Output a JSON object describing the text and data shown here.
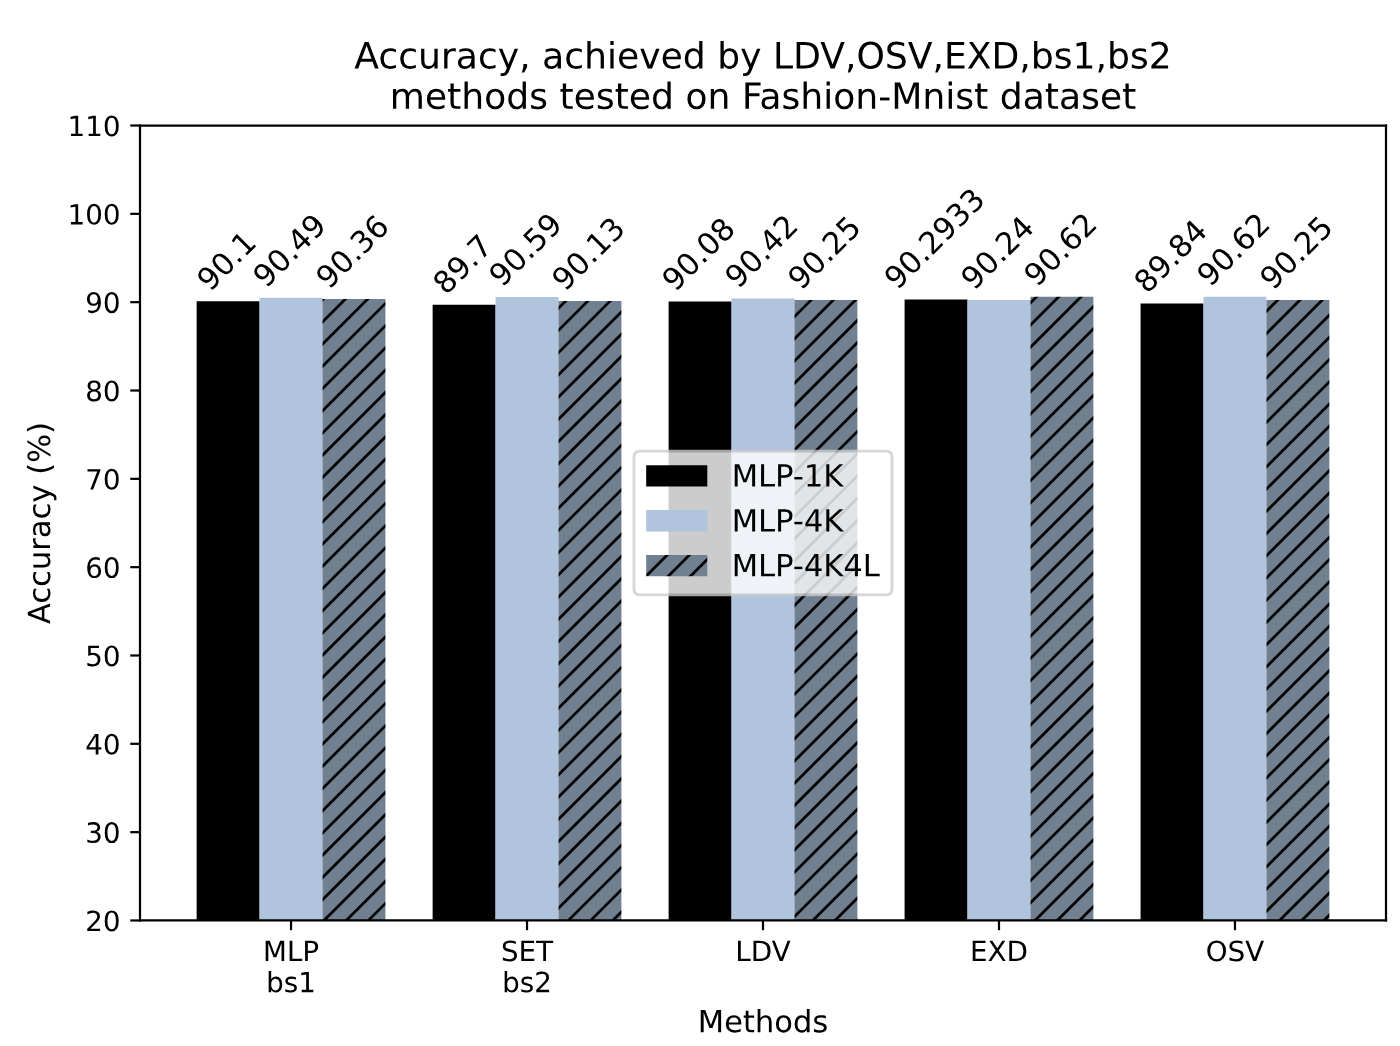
{
  "chart_data": {
    "type": "bar",
    "title": "Accuracy, achieved by LDV,OSV,EXD,bs1,bs2\nmethods tested on Fashion-Mnist dataset",
    "xlabel": "Methods",
    "ylabel": "Accuracy (%)",
    "categories": [
      "MLP\nbs1",
      "SET\nbs2",
      "LDV",
      "EXD",
      "OSV"
    ],
    "series": [
      {
        "name": "MLP-1K",
        "color": "#000000",
        "values": [
          90.1,
          89.7,
          90.08,
          90.2933,
          89.84
        ]
      },
      {
        "name": "MLP-4K",
        "color": "#b0c4de",
        "values": [
          90.49,
          90.59,
          90.42,
          90.24,
          90.62
        ]
      },
      {
        "name": "MLP-4K4L",
        "color": "#708090",
        "values": [
          90.36,
          90.13,
          90.25,
          90.62,
          90.25
        ]
      }
    ],
    "ylim": [
      20,
      110
    ],
    "yticks": [
      20,
      30,
      40,
      50,
      60,
      70,
      80,
      90,
      100,
      110
    ],
    "data_labels": true,
    "legend": "center",
    "grid": false
  }
}
